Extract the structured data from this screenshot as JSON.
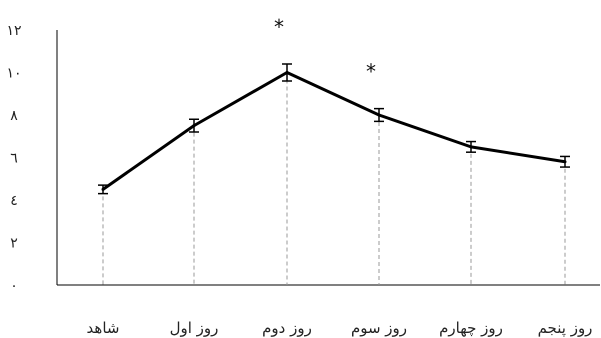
{
  "chart_data": {
    "type": "line",
    "categories": [
      "شاهد",
      "روز اول",
      "روز دوم",
      "روز سوم",
      "روز چهارم",
      "روز پنجم"
    ],
    "series": [
      {
        "values": [
          4.5,
          7.5,
          10.0,
          8.0,
          6.5,
          5.8
        ],
        "errors": [
          0.2,
          0.3,
          0.4,
          0.3,
          0.25,
          0.25
        ]
      }
    ],
    "yticks": [
      "۰",
      "۲",
      "٤",
      "٦",
      "۸",
      "۱۰",
      "۱۲"
    ],
    "ylim": [
      0,
      12
    ],
    "significance": [
      "",
      "",
      "*",
      "*",
      "",
      ""
    ],
    "line_color": "#000000",
    "drop_line_color": "#999999",
    "grid": false
  }
}
